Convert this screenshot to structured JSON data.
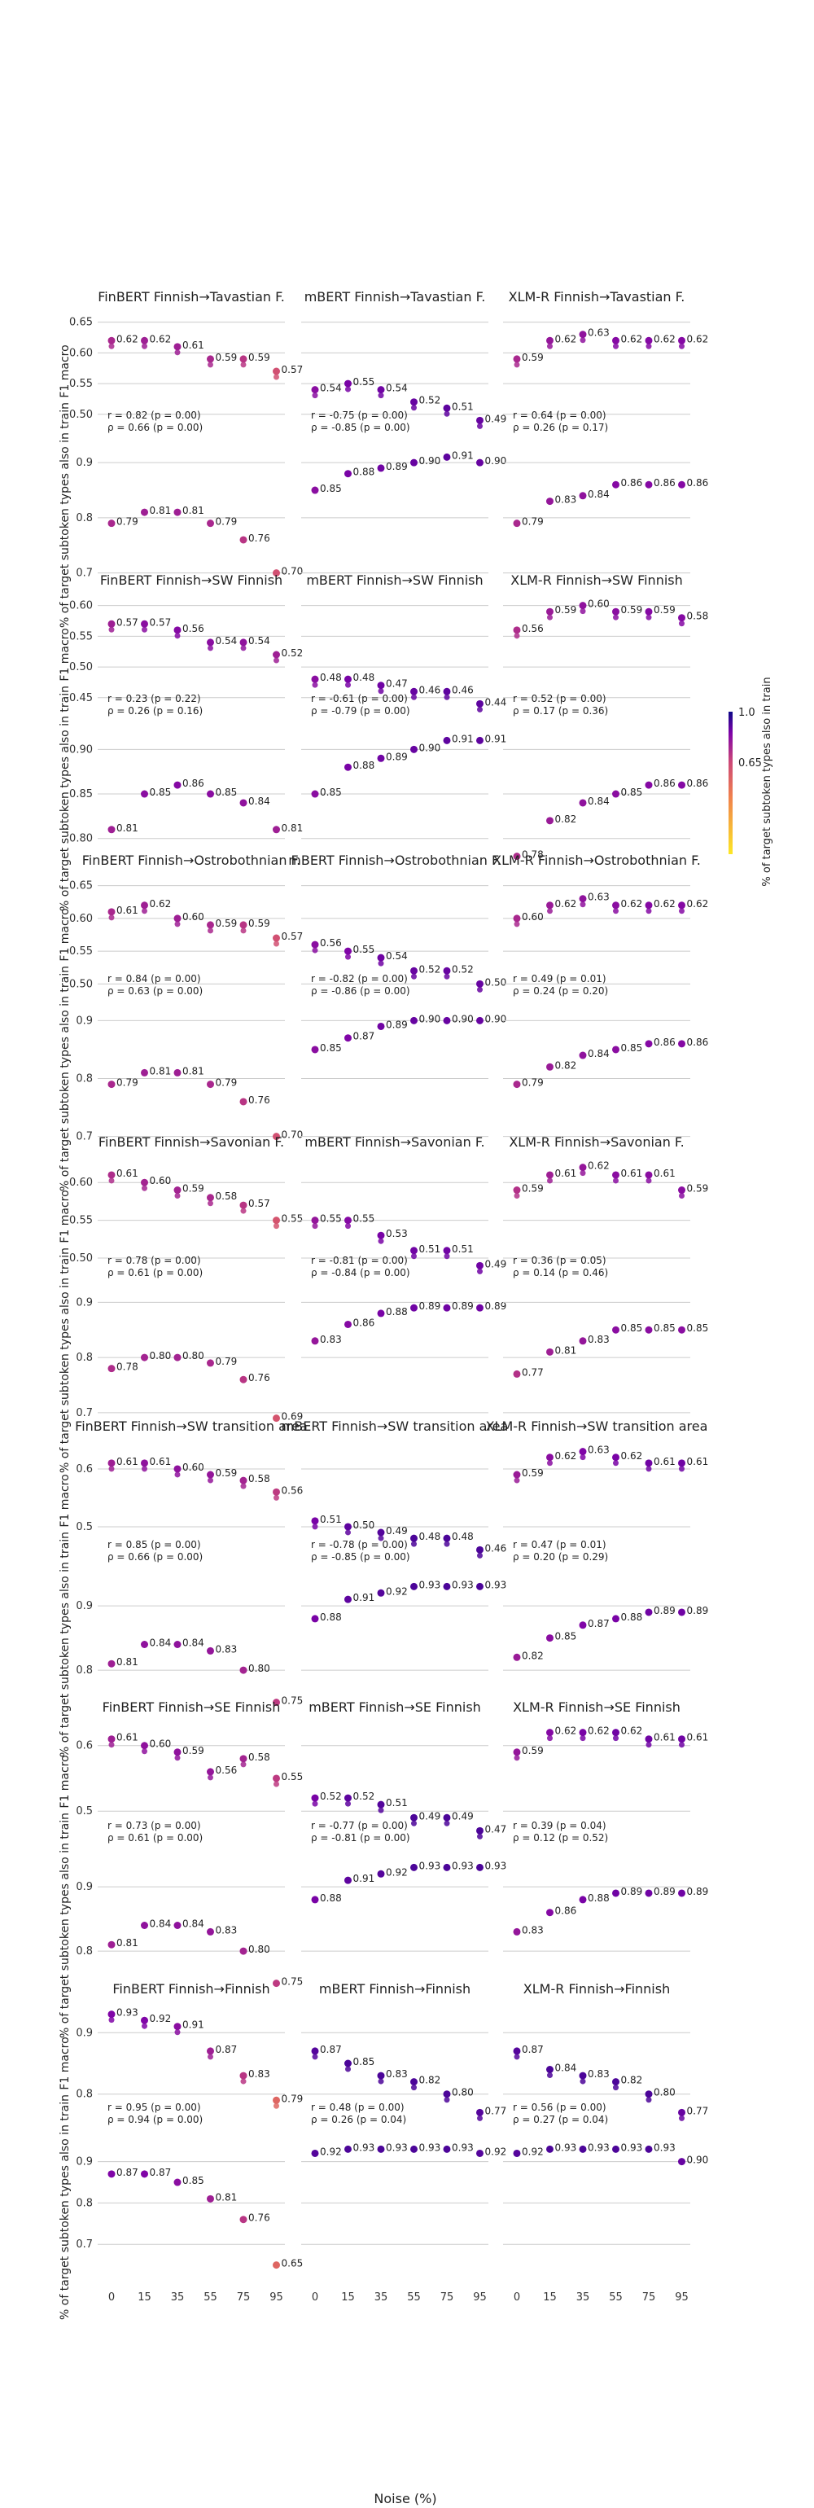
{
  "chart_data": {
    "type": "scatter",
    "x_label": "Noise (%)",
    "x_ticks": [
      0,
      15,
      35,
      55,
      75,
      95
    ],
    "colorbar": {
      "label": "% of target subtoken types also in train",
      "ticks": [
        "1.0",
        "0.65"
      ],
      "range": [
        0.3,
        1.0
      ]
    },
    "y_label_top": "F1 macro",
    "y_label_bottom": "% of target subtoken types also in train",
    "models": [
      "FinBERT",
      "mBERT",
      "XLM-R"
    ],
    "colors": {
      "low": "#fde725",
      "mid": "#e8665a",
      "high": "#6a00a8",
      "grid": "#cccccc"
    },
    "targets": [
      {
        "name": "Tavastian F.",
        "top_ticks": [
          "0.65",
          "0.60",
          "0.55",
          "0.50"
        ],
        "bottom_ticks": [
          "0.9",
          "0.8",
          "0.7"
        ],
        "panels": [
          {
            "title": "FinBERT Finnish→Tavastian F.",
            "f1": [
              0.62,
              0.62,
              0.61,
              0.59,
              0.59,
              0.57
            ],
            "ratio": [
              0.79,
              0.81,
              0.81,
              0.79,
              0.76,
              0.7
            ],
            "r": "r = 0.82 (p = 0.00)",
            "rho": "ρ = 0.66 (p = 0.00)"
          },
          {
            "title": "mBERT Finnish→Tavastian F.",
            "f1": [
              0.54,
              0.55,
              0.54,
              0.52,
              0.51,
              0.49
            ],
            "ratio": [
              0.85,
              0.88,
              0.89,
              0.9,
              0.91,
              0.9
            ],
            "r": "r = -0.75 (p = 0.00)",
            "rho": "ρ = -0.85 (p = 0.00)"
          },
          {
            "title": "XLM-R Finnish→Tavastian F.",
            "f1": [
              0.59,
              0.62,
              0.63,
              0.62,
              0.62,
              0.62
            ],
            "ratio": [
              0.79,
              0.83,
              0.84,
              0.86,
              0.86,
              0.86
            ],
            "r": "r = 0.64 (p = 0.00)",
            "rho": "ρ = 0.26 (p = 0.17)"
          }
        ]
      },
      {
        "name": "SW Finnish",
        "top_ticks": [
          "0.60",
          "0.55",
          "0.50",
          "0.45"
        ],
        "bottom_ticks": [
          "0.90",
          "0.85",
          "0.80"
        ],
        "panels": [
          {
            "title": "FinBERT Finnish→SW Finnish",
            "f1": [
              0.57,
              0.57,
              0.56,
              0.54,
              0.54,
              0.52
            ],
            "ratio": [
              0.81,
              0.85,
              0.86,
              0.85,
              0.84,
              0.81
            ],
            "r": "r = 0.23 (p = 0.22)",
            "rho": "ρ = 0.26 (p = 0.16)"
          },
          {
            "title": "mBERT Finnish→SW Finnish",
            "f1": [
              0.48,
              0.48,
              0.47,
              0.46,
              0.46,
              0.44
            ],
            "ratio": [
              0.85,
              0.88,
              0.89,
              0.9,
              0.91,
              0.91
            ],
            "r": "r = -0.61 (p = 0.00)",
            "rho": "ρ = -0.79 (p = 0.00)"
          },
          {
            "title": "XLM-R Finnish→SW Finnish",
            "f1": [
              0.56,
              0.59,
              0.6,
              0.59,
              0.59,
              0.58
            ],
            "ratio": [
              0.78,
              0.82,
              0.84,
              0.85,
              0.86,
              0.86
            ],
            "r": "r = 0.52 (p = 0.00)",
            "rho": "ρ = 0.17 (p = 0.36)"
          }
        ]
      },
      {
        "name": "Ostrobothnian F.",
        "top_ticks": [
          "0.65",
          "0.60",
          "0.55",
          "0.50"
        ],
        "bottom_ticks": [
          "0.9",
          "0.8",
          "0.7"
        ],
        "panels": [
          {
            "title": "FinBERT Finnish→Ostrobothnian F.",
            "f1": [
              0.61,
              0.62,
              0.6,
              0.59,
              0.59,
              0.57
            ],
            "ratio": [
              0.79,
              0.81,
              0.81,
              0.79,
              0.76,
              0.7
            ],
            "r": "r = 0.84 (p = 0.00)",
            "rho": "ρ = 0.63 (p = 0.00)"
          },
          {
            "title": "mBERT Finnish→Ostrobothnian F.",
            "f1": [
              0.56,
              0.55,
              0.54,
              0.52,
              0.52,
              0.5
            ],
            "ratio": [
              0.85,
              0.87,
              0.89,
              0.9,
              0.9,
              0.9
            ],
            "r": "r = -0.82 (p = 0.00)",
            "rho": "ρ = -0.86 (p = 0.00)"
          },
          {
            "title": "XLM-R Finnish→Ostrobothnian F.",
            "f1": [
              0.6,
              0.62,
              0.63,
              0.62,
              0.62,
              0.62
            ],
            "ratio": [
              0.79,
              0.82,
              0.84,
              0.85,
              0.86,
              0.86
            ],
            "r": "r = 0.49 (p = 0.01)",
            "rho": "ρ = 0.24 (p = 0.20)"
          }
        ]
      },
      {
        "name": "Savonian F.",
        "top_ticks": [
          "0.60",
          "0.55",
          "0.50"
        ],
        "bottom_ticks": [
          "0.9",
          "0.8",
          "0.7"
        ],
        "panels": [
          {
            "title": "FinBERT Finnish→Savonian F.",
            "f1": [
              0.61,
              0.6,
              0.59,
              0.58,
              0.57,
              0.55
            ],
            "ratio": [
              0.78,
              0.8,
              0.8,
              0.79,
              0.76,
              0.69
            ],
            "r": "r = 0.78 (p = 0.00)",
            "rho": "ρ = 0.61 (p = 0.00)"
          },
          {
            "title": "mBERT Finnish→Savonian F.",
            "f1": [
              0.55,
              0.55,
              0.53,
              0.51,
              0.51,
              0.49
            ],
            "ratio": [
              0.83,
              0.86,
              0.88,
              0.89,
              0.89,
              0.89
            ],
            "r": "r = -0.81 (p = 0.00)",
            "rho": "ρ = -0.84 (p = 0.00)"
          },
          {
            "title": "XLM-R Finnish→Savonian F.",
            "f1": [
              0.59,
              0.61,
              0.62,
              0.61,
              0.61,
              0.59
            ],
            "ratio": [
              0.77,
              0.81,
              0.83,
              0.85,
              0.85,
              0.85
            ],
            "r": "r = 0.36 (p = 0.05)",
            "rho": "ρ = 0.14 (p = 0.46)"
          }
        ]
      },
      {
        "name": "SW transition area",
        "top_ticks": [
          "0.6",
          "0.5"
        ],
        "bottom_ticks": [
          "0.9",
          "0.8"
        ],
        "panels": [
          {
            "title": "FinBERT Finnish→SW transition area",
            "f1": [
              0.61,
              0.61,
              0.6,
              0.59,
              0.58,
              0.56
            ],
            "ratio": [
              0.81,
              0.84,
              0.84,
              0.83,
              0.8,
              0.75
            ],
            "r": "r = 0.85 (p = 0.00)",
            "rho": "ρ = 0.66 (p = 0.00)"
          },
          {
            "title": "mBERT Finnish→SW transition area",
            "f1": [
              0.51,
              0.5,
              0.49,
              0.48,
              0.48,
              0.46
            ],
            "ratio": [
              0.88,
              0.91,
              0.92,
              0.93,
              0.93,
              0.93
            ],
            "r": "r = -0.78 (p = 0.00)",
            "rho": "ρ = -0.85 (p = 0.00)"
          },
          {
            "title": "XLM-R Finnish→SW transition area",
            "f1": [
              0.59,
              0.62,
              0.63,
              0.62,
              0.61,
              0.61
            ],
            "ratio": [
              0.82,
              0.85,
              0.87,
              0.88,
              0.89,
              0.89
            ],
            "r": "r = 0.47 (p = 0.01)",
            "rho": "ρ = 0.20 (p = 0.29)"
          }
        ]
      },
      {
        "name": "SE Finnish",
        "top_ticks": [
          "0.6",
          "0.5"
        ],
        "bottom_ticks": [
          "0.9",
          "0.8"
        ],
        "panels": [
          {
            "title": "FinBERT Finnish→SE Finnish",
            "f1": [
              0.61,
              0.6,
              0.59,
              0.56,
              0.58,
              0.55
            ],
            "ratio": [
              0.81,
              0.84,
              0.84,
              0.83,
              0.8,
              0.75
            ],
            "r": "r = 0.73 (p = 0.00)",
            "rho": "ρ = 0.61 (p = 0.00)"
          },
          {
            "title": "mBERT Finnish→SE Finnish",
            "f1": [
              0.52,
              0.52,
              0.51,
              0.49,
              0.49,
              0.47
            ],
            "ratio": [
              0.88,
              0.91,
              0.92,
              0.93,
              0.93,
              0.93
            ],
            "r": "r = -0.77 (p = 0.00)",
            "rho": "ρ = -0.81 (p = 0.00)"
          },
          {
            "title": "XLM-R Finnish→SE Finnish",
            "f1": [
              0.59,
              0.62,
              0.62,
              0.62,
              0.61,
              0.61
            ],
            "ratio": [
              0.83,
              0.86,
              0.88,
              0.89,
              0.89,
              0.89
            ],
            "r": "r = 0.39 (p = 0.04)",
            "rho": "ρ = 0.12 (p = 0.52)"
          }
        ]
      },
      {
        "name": "Finnish",
        "top_ticks": [
          "0.9",
          "0.8"
        ],
        "bottom_ticks": [
          "0.9",
          "0.8",
          "0.7"
        ],
        "panels": [
          {
            "title": "FinBERT Finnish→Finnish",
            "f1": [
              0.93,
              0.92,
              0.91,
              0.87,
              0.83,
              0.79
            ],
            "ratio": [
              0.87,
              0.87,
              0.85,
              0.81,
              0.76,
              0.65
            ],
            "r": "r = 0.95 (p = 0.00)",
            "rho": "ρ = 0.94 (p = 0.00)"
          },
          {
            "title": "mBERT Finnish→Finnish",
            "f1": [
              0.87,
              0.85,
              0.83,
              0.82,
              0.8,
              0.77
            ],
            "ratio": [
              0.92,
              0.93,
              0.93,
              0.93,
              0.93,
              0.92
            ],
            "r": "r = 0.48 (p = 0.00)",
            "rho": "ρ = 0.26 (p = 0.04)"
          },
          {
            "title": "XLM-R Finnish→Finnish",
            "f1": [
              0.87,
              0.84,
              0.83,
              0.82,
              0.8,
              0.77
            ],
            "ratio": [
              0.92,
              0.93,
              0.93,
              0.93,
              0.93,
              0.9
            ],
            "r": "r = 0.56 (p = 0.00)",
            "rho": "ρ = 0.27 (p = 0.04)"
          }
        ]
      }
    ]
  }
}
